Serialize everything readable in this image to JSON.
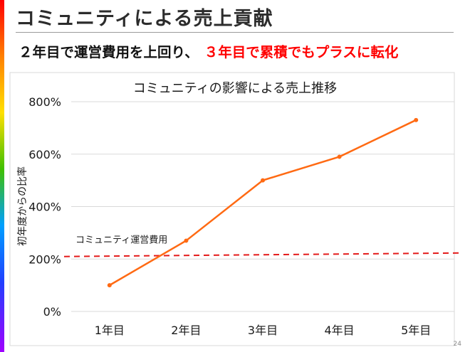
{
  "slide": {
    "title": "コミュニティによる売上貢献",
    "subtitle_main": "２年目で運営費用を上回り、",
    "subtitle_accent": "３年目で累積でもプラスに転化",
    "page_number": "24"
  },
  "colors": {
    "line": "#ff6a13",
    "threshold": "#e41a1a",
    "accent_text": "#ff0000"
  },
  "chart_data": {
    "type": "line",
    "title": "コミュニティの影響による売上推移",
    "ylabel": "初年度からの比率",
    "xlabel": "",
    "categories": [
      "1年目",
      "2年目",
      "3年目",
      "4年目",
      "5年目"
    ],
    "series": [
      {
        "values": [
          100,
          270,
          500,
          590,
          730
        ]
      }
    ],
    "ylim": [
      0,
      800
    ],
    "yticks": [
      0,
      200,
      400,
      600,
      800
    ],
    "ytick_labels": [
      "0%",
      "200%",
      "400%",
      "600%",
      "800%"
    ],
    "grid": true,
    "reference_line": {
      "label": "コミュニティ運営費用",
      "value": 215,
      "style": "dashed"
    }
  }
}
